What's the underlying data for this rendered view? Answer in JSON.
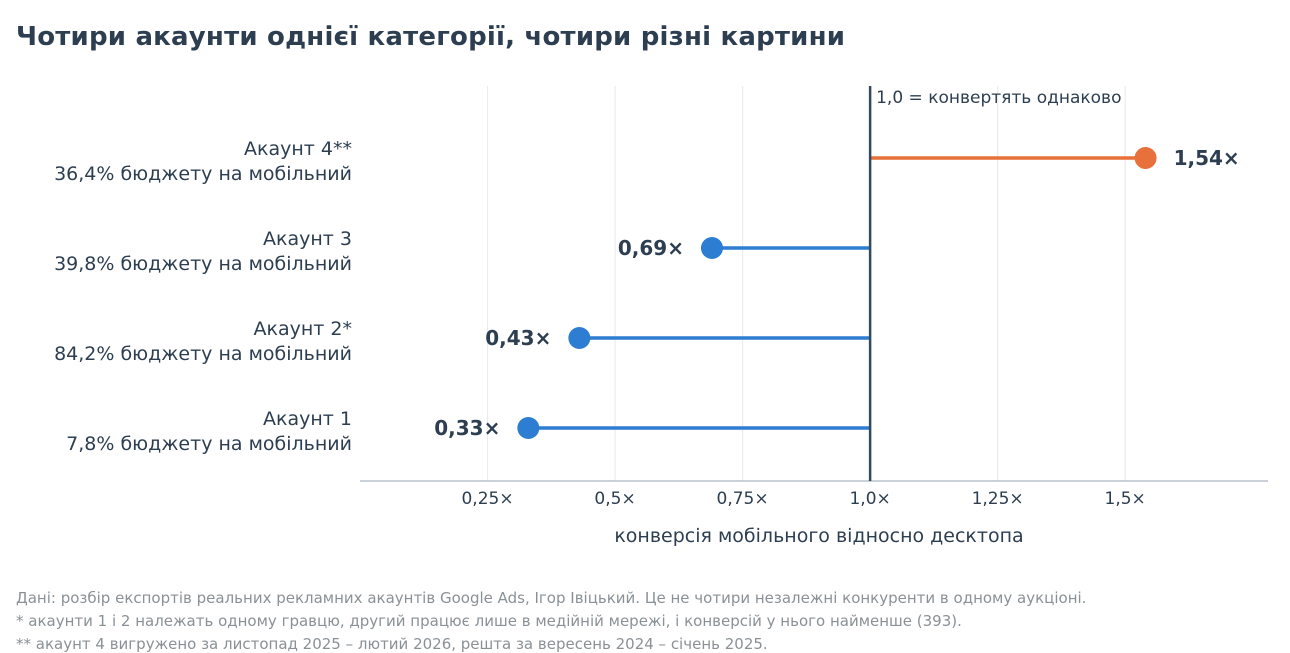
{
  "title": "Чотири акаунти однієї категорії, чотири різні картини",
  "footnotes": [
    "Дані: розбір експортів реальних рекламних акаунтів Google Ads, Ігор Івіцький. Це не чотири незалежні конкуренти в одному аукціоні.",
    "* акаунти 1 і 2 належать одному гравцю, другий працює лише в медійній мережі, і конверсій у нього найменше (393).",
    "** акаунт 4 вигружено за листопад 2025 – лютий 2026, решта за вересень 2024 – січень 2025."
  ],
  "chart_data": {
    "type": "lollipop",
    "title": "Чотири акаунти однієї категорії, чотири різні картини",
    "xlabel": "конверсія мобільного відносно десктопа",
    "ylabel": "",
    "xlim": [
      0.0,
      1.78
    ],
    "x_ticks": [
      0.25,
      0.5,
      0.75,
      1.0,
      1.25,
      1.5
    ],
    "x_tick_labels": [
      "0,25×",
      "0,5×",
      "0,75×",
      "1,0×",
      "1,25×",
      "1,5×"
    ],
    "baseline": 1.0,
    "baseline_label": "1,0 = конвертять однаково",
    "grid": "vertical",
    "colors": {
      "below": "#2d7dd2",
      "above": "#e8703a",
      "text": "#2c3e50",
      "grid": "#e9ecef",
      "axis": "#b9c2cb",
      "baseline": "#34495e"
    },
    "items": [
      {
        "name": "Акаунт 4**",
        "sub": "36,4% бюджету на мобільний",
        "value": 1.54,
        "label": "1,54×"
      },
      {
        "name": "Акаунт 3",
        "sub": "39,8% бюджету на мобільний",
        "value": 0.69,
        "label": "0,69×"
      },
      {
        "name": "Акаунт 2*",
        "sub": "84,2% бюджету на мобільний",
        "value": 0.43,
        "label": "0,43×"
      },
      {
        "name": "Акаунт 1",
        "sub": "7,8% бюджету на мобільний",
        "value": 0.33,
        "label": "0,33×"
      }
    ]
  }
}
